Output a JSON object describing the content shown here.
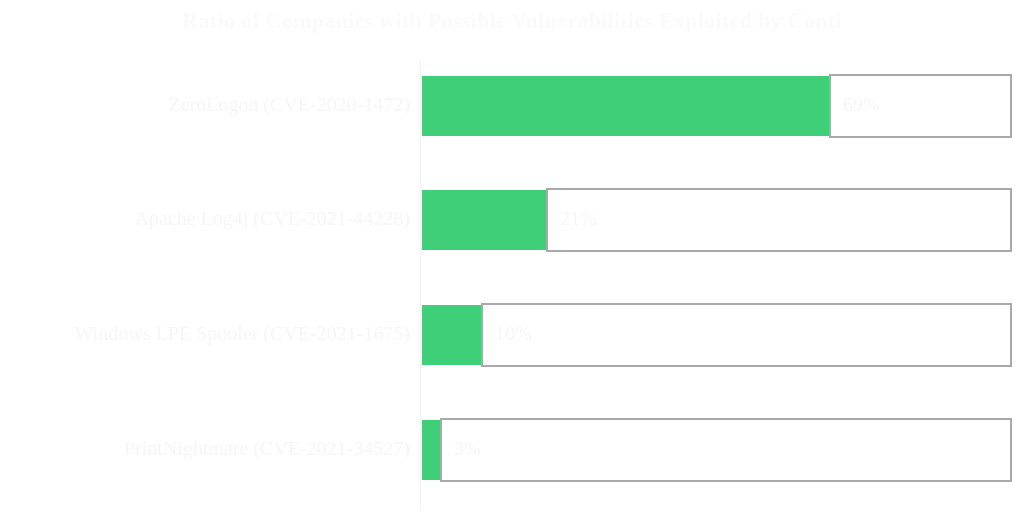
{
  "chart_data": {
    "type": "bar",
    "orientation": "horizontal",
    "title": "Ratio of Companies with Possible Vulnerabilities Exploited by Conti",
    "categories": [
      "ZeroLogon (CVE-2020-1472)",
      "Apache Log4j (CVE-2021-44228)",
      "Windows LPE Spooler (CVE-2021-1675)",
      "PrintNightmare (CVE-2021-34527)"
    ],
    "values": [
      69,
      21,
      10,
      3
    ],
    "value_labels": [
      "69%",
      "21%",
      "10%",
      "3%"
    ],
    "xlabel": "",
    "ylabel": "",
    "xlim": [
      0,
      100
    ],
    "grid": false,
    "legend": null
  },
  "colors": {
    "fill": "#3ecf78",
    "remainder_border": "#a9a9a9",
    "remainder_fill": "#ffffff"
  },
  "rows": [
    {
      "label": "ZeroLogon (CVE-2020-1472)",
      "value": "69%",
      "pct": 69
    },
    {
      "label": "Apache Log4j (CVE-2021-44228)",
      "value": "21%",
      "pct": 21
    },
    {
      "label": "Windows LPE Spooler (CVE-2021-1675)",
      "value": "10%",
      "pct": 10
    },
    {
      "label": "PrintNightmare (CVE-2021-34527)",
      "value": "3%",
      "pct": 3
    }
  ]
}
